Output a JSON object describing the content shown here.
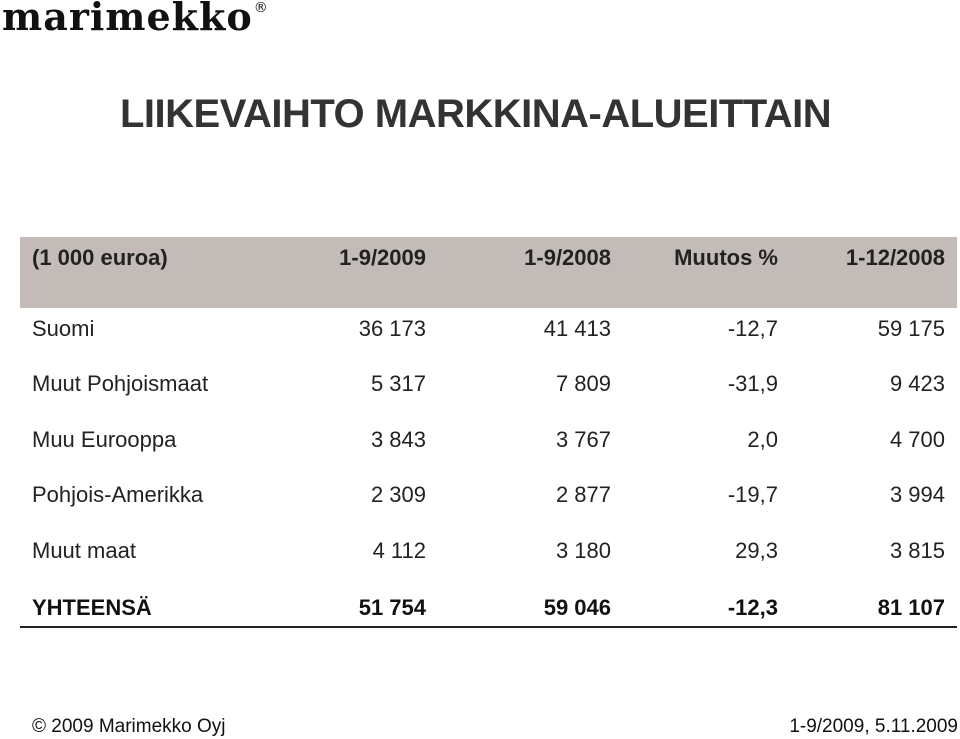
{
  "logo": {
    "text": "marimekko",
    "mark": "®"
  },
  "title": "LIIKEVAIHTO MARKKINA-ALUEITTAIN",
  "table": {
    "header": [
      "(1 000 euroa)",
      "1-9/2009",
      "1-9/2008",
      "Muutos %",
      "1-12/2008"
    ],
    "rows": [
      [
        "Suomi",
        "36 173",
        "41 413",
        "-12,7",
        "59 175"
      ],
      [
        "Muut Pohjoismaat",
        "5 317",
        "7 809",
        "-31,9",
        "9 423"
      ],
      [
        "Muu Eurooppa",
        "3 843",
        "3 767",
        "2,0",
        "4 700"
      ],
      [
        "Pohjois-Amerikka",
        "2 309",
        "2 877",
        "-19,7",
        "3 994"
      ],
      [
        "Muut maat",
        "4 112",
        "3 180",
        "29,3",
        "3 815"
      ]
    ],
    "total": [
      "YHTEENSÄ",
      "51 754",
      "59 046",
      "-12,3",
      "81 107"
    ]
  },
  "footer": {
    "left": "© 2009 Marimekko Oyj",
    "right": "1-9/2009, 5.11.2009"
  }
}
